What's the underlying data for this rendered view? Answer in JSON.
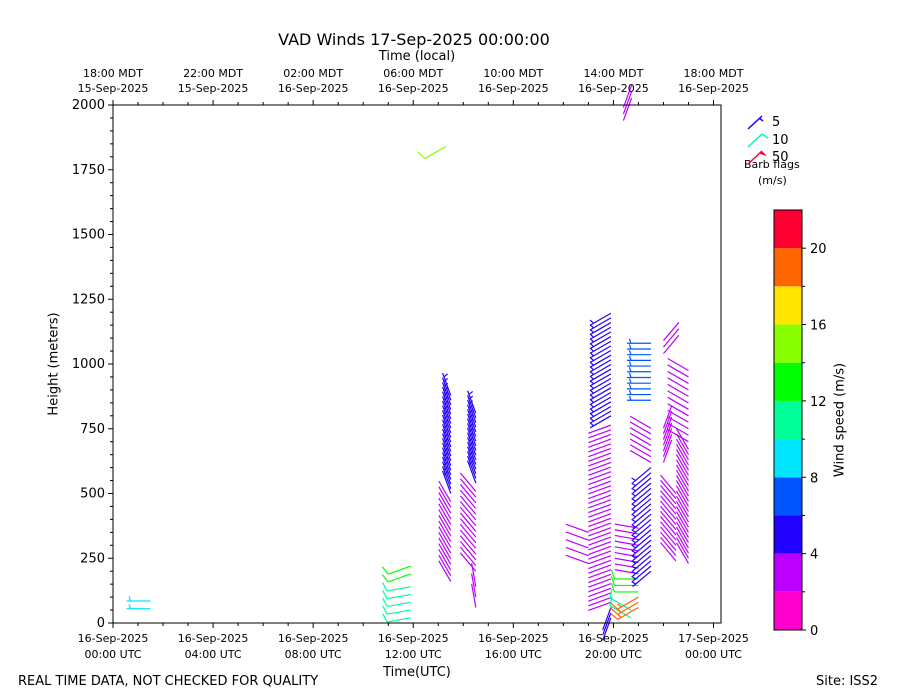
{
  "chart_data": {
    "type": "wind_barbs",
    "title": "VAD Winds 17-Sep-2025 00:00:00",
    "xlabel": "Time(UTC)",
    "ylabel": "Height (meters)",
    "top_xlabel": "Time (local)",
    "colorbar_label": "Wind speed (m/s)",
    "x_range_hours_since_16Sep00UTC": [
      0,
      24.3
    ],
    "ylim": [
      0,
      2000
    ],
    "y_ticks": [
      "0",
      "250",
      "500",
      "750",
      "1000",
      "1250",
      "1500",
      "1750",
      "2000"
    ],
    "x_ticks_utc": [
      {
        "line1": "16-Sep-2025",
        "line2": "00:00 UTC"
      },
      {
        "line1": "16-Sep-2025",
        "line2": "04:00 UTC"
      },
      {
        "line1": "16-Sep-2025",
        "line2": "08:00 UTC"
      },
      {
        "line1": "16-Sep-2025",
        "line2": "12:00 UTC"
      },
      {
        "line1": "16-Sep-2025",
        "line2": "16:00 UTC"
      },
      {
        "line1": "16-Sep-2025",
        "line2": "20:00 UTC"
      },
      {
        "line1": "17-Sep-2025",
        "line2": "00:00 UTC"
      }
    ],
    "x_ticks_local": [
      {
        "line1": "18:00 MDT",
        "line2": "15-Sep-2025"
      },
      {
        "line1": "22:00 MDT",
        "line2": "15-Sep-2025"
      },
      {
        "line1": "02:00 MDT",
        "line2": "16-Sep-2025"
      },
      {
        "line1": "06:00 MDT",
        "line2": "16-Sep-2025"
      },
      {
        "line1": "10:00 MDT",
        "line2": "16-Sep-2025"
      },
      {
        "line1": "14:00 MDT",
        "line2": "16-Sep-2025"
      },
      {
        "line1": "18:00 MDT",
        "line2": "16-Sep-2025"
      }
    ],
    "colorbar": {
      "min": 0,
      "max": 22,
      "step": 2,
      "ticks": [
        "0",
        "4",
        "8",
        "12",
        "16",
        "20"
      ],
      "colors": [
        "#ff00cc",
        "#bb00ff",
        "#2200ff",
        "#0055ff",
        "#00e5ff",
        "#00ff99",
        "#00ff00",
        "#88ff00",
        "#ffe600",
        "#ff6600",
        "#ff0033"
      ]
    },
    "legend": {
      "entries": [
        {
          "label": "5",
          "color": "#2200ff"
        },
        {
          "label": "10",
          "color": "#00ff99"
        },
        {
          "label": "50",
          "color": "#ff0033"
        }
      ],
      "title_line1": "Barb flags",
      "title_line2": "(m/s)"
    },
    "profiles": [
      {
        "t": 1.5,
        "segments": [
          {
            "from": 55,
            "to": 90,
            "step": 30,
            "speed": 9,
            "dir": 270
          }
        ]
      },
      {
        "t": 11.9,
        "segments": [
          {
            "from": 20,
            "to": 160,
            "step": 30,
            "speed": 10,
            "dir": 260
          },
          {
            "from": 190,
            "to": 230,
            "step": 30,
            "speed": 12,
            "dir": 250
          }
        ]
      },
      {
        "t": 13.3,
        "segments": [
          {
            "from": 1840,
            "to": 1860,
            "step": 30,
            "speed": 14,
            "dir": 240
          }
        ]
      },
      {
        "t": 13.5,
        "segments": [
          {
            "from": 160,
            "to": 480,
            "step": 22,
            "speed": 2,
            "dir": 330
          },
          {
            "from": 500,
            "to": 890,
            "step": 18,
            "speed": 5,
            "dir": 340
          }
        ]
      },
      {
        "t": 14.5,
        "segments": [
          {
            "from": 60,
            "to": 150,
            "step": 40,
            "speed": 2,
            "dir": 350
          },
          {
            "from": 200,
            "to": 520,
            "step": 22,
            "speed": 2,
            "dir": 320
          },
          {
            "from": 540,
            "to": 810,
            "step": 18,
            "speed": 5,
            "dir": 340
          }
        ]
      },
      {
        "t": 19.0,
        "segments": [
          {
            "from": 230,
            "to": 360,
            "step": 30,
            "speed": 2,
            "dir": 290
          }
        ]
      },
      {
        "t": 19.9,
        "segments": [
          {
            "from": 20,
            "to": 60,
            "step": 20,
            "speed": 4,
            "dir": 200
          },
          {
            "from": 80,
            "to": 780,
            "step": 18,
            "speed": 3,
            "dir": 250
          },
          {
            "from": 800,
            "to": 1210,
            "step": 18,
            "speed": 5,
            "dir": 240
          }
        ]
      },
      {
        "t": 20.4,
        "segments": [
          {
            "from": 1940,
            "to": 1990,
            "step": 25,
            "speed": 2,
            "dir": 20
          }
        ]
      },
      {
        "t": 20.7,
        "segments": [
          {
            "from": 20,
            "to": 50,
            "step": 30,
            "speed": 11,
            "dir": 300
          }
        ]
      },
      {
        "t": 21.0,
        "segments": [
          {
            "from": 60,
            "to": 110,
            "step": 20,
            "speed": 18,
            "dir": 240
          },
          {
            "from": 120,
            "to": 180,
            "step": 25,
            "speed": 13,
            "dir": 270
          },
          {
            "from": 190,
            "to": 370,
            "step": 22,
            "speed": 2,
            "dir": 280
          }
        ]
      },
      {
        "t": 21.5,
        "segments": [
          {
            "from": 200,
            "to": 600,
            "step": 20,
            "speed": 5,
            "dir": 230
          },
          {
            "from": 620,
            "to": 760,
            "step": 22,
            "speed": 2,
            "dir": 300
          },
          {
            "from": 860,
            "to": 1100,
            "step": 22,
            "speed": 7,
            "dir": 270
          }
        ]
      },
      {
        "t": 22.0,
        "segments": [
          {
            "from": 620,
            "to": 760,
            "step": 22,
            "speed": 2,
            "dir": 20
          },
          {
            "from": 1040,
            "to": 1110,
            "step": 25,
            "speed": 3,
            "dir": 40
          }
        ]
      },
      {
        "t": 22.5,
        "segments": [
          {
            "from": 240,
            "to": 510,
            "step": 20,
            "speed": 2,
            "dir": 320
          }
        ]
      },
      {
        "t": 23.0,
        "segments": [
          {
            "from": 230,
            "to": 680,
            "step": 20,
            "speed": 2,
            "dir": 330
          },
          {
            "from": 700,
            "to": 980,
            "step": 25,
            "speed": 2,
            "dir": 300
          }
        ]
      }
    ]
  },
  "footer": {
    "left": "REAL TIME DATA, NOT CHECKED FOR QUALITY",
    "right": "Site: ISS2"
  }
}
